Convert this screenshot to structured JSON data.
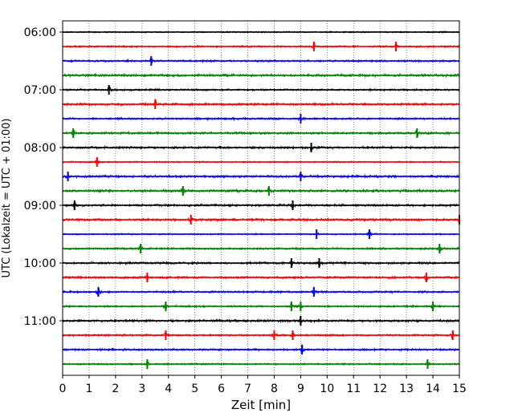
{
  "chart_data": {
    "type": "line",
    "title": "",
    "xlabel": "Zeit  [min]",
    "ylabel": "UTC (Lokalzeit = UTC + 01:00)",
    "xlim": [
      0,
      15
    ],
    "x_ticks": [
      0,
      1,
      2,
      3,
      4,
      5,
      6,
      7,
      8,
      9,
      10,
      11,
      12,
      13,
      14,
      15
    ],
    "y_tick_labels": [
      "06:00",
      "07:00",
      "08:00",
      "09:00",
      "10:00",
      "11:00"
    ],
    "grid": "vertical dotted",
    "trace_interval_minutes": 15,
    "trace_colors": [
      "#000000",
      "#ff0000",
      "#0000ff",
      "#008000"
    ],
    "traces": [
      {
        "start": "06:00",
        "color": "#000000",
        "events": []
      },
      {
        "start": "06:15",
        "color": "#ff0000",
        "events": [
          9.5,
          12.6
        ]
      },
      {
        "start": "06:30",
        "color": "#0000ff",
        "events": [
          3.35
        ]
      },
      {
        "start": "06:45",
        "color": "#008000",
        "events": []
      },
      {
        "start": "07:00",
        "color": "#000000",
        "events": [
          1.75
        ]
      },
      {
        "start": "07:15",
        "color": "#ff0000",
        "events": [
          3.5
        ]
      },
      {
        "start": "07:30",
        "color": "#0000ff",
        "events": [
          9.0
        ]
      },
      {
        "start": "07:45",
        "color": "#008000",
        "events": [
          0.4,
          13.4
        ]
      },
      {
        "start": "08:00",
        "color": "#000000",
        "events": [
          9.4
        ]
      },
      {
        "start": "08:15",
        "color": "#ff0000",
        "events": [
          1.3
        ]
      },
      {
        "start": "08:30",
        "color": "#0000ff",
        "events": [
          0.2,
          9.0
        ]
      },
      {
        "start": "08:45",
        "color": "#008000",
        "events": [
          4.55,
          7.8
        ]
      },
      {
        "start": "09:00",
        "color": "#000000",
        "events": [
          0.45,
          8.7
        ]
      },
      {
        "start": "09:15",
        "color": "#ff0000",
        "events": [
          4.85,
          15.0
        ]
      },
      {
        "start": "09:30",
        "color": "#0000ff",
        "events": [
          9.6,
          11.6
        ]
      },
      {
        "start": "09:45",
        "color": "#008000",
        "events": [
          2.95,
          14.25
        ]
      },
      {
        "start": "10:00",
        "color": "#000000",
        "events": [
          8.65,
          9.7
        ]
      },
      {
        "start": "10:15",
        "color": "#ff0000",
        "events": [
          3.2,
          13.75
        ]
      },
      {
        "start": "10:30",
        "color": "#0000ff",
        "events": [
          1.35,
          9.5
        ]
      },
      {
        "start": "10:45",
        "color": "#008000",
        "events": [
          3.9,
          8.65,
          9.0,
          14.0
        ]
      },
      {
        "start": "11:00",
        "color": "#000000",
        "events": [
          9.0
        ]
      },
      {
        "start": "11:15",
        "color": "#ff0000",
        "events": [
          3.9,
          8.0,
          8.7,
          14.75
        ]
      },
      {
        "start": "11:30",
        "color": "#0000ff",
        "events": [
          9.05
        ]
      },
      {
        "start": "11:45",
        "color": "#008000",
        "events": [
          3.2,
          13.8
        ]
      }
    ]
  }
}
